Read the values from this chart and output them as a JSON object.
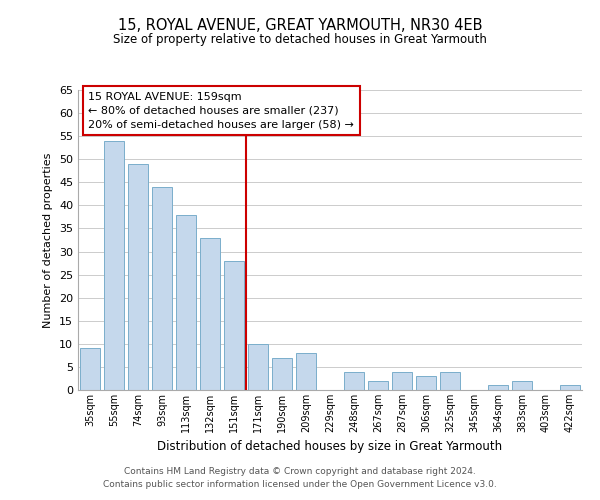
{
  "title": "15, ROYAL AVENUE, GREAT YARMOUTH, NR30 4EB",
  "subtitle": "Size of property relative to detached houses in Great Yarmouth",
  "xlabel": "Distribution of detached houses by size in Great Yarmouth",
  "ylabel": "Number of detached properties",
  "bar_labels": [
    "35sqm",
    "55sqm",
    "74sqm",
    "93sqm",
    "113sqm",
    "132sqm",
    "151sqm",
    "171sqm",
    "190sqm",
    "209sqm",
    "229sqm",
    "248sqm",
    "267sqm",
    "287sqm",
    "306sqm",
    "325sqm",
    "345sqm",
    "364sqm",
    "383sqm",
    "403sqm",
    "422sqm"
  ],
  "bar_values": [
    9,
    54,
    49,
    44,
    38,
    33,
    28,
    10,
    7,
    8,
    0,
    4,
    2,
    4,
    3,
    4,
    0,
    1,
    2,
    0,
    1
  ],
  "bar_color": "#c5d8ec",
  "bar_edge_color": "#7aaecb",
  "vline_x": 6.5,
  "vline_color": "#cc0000",
  "ylim": [
    0,
    65
  ],
  "yticks": [
    0,
    5,
    10,
    15,
    20,
    25,
    30,
    35,
    40,
    45,
    50,
    55,
    60,
    65
  ],
  "annotation_title": "15 ROYAL AVENUE: 159sqm",
  "annotation_line1": "← 80% of detached houses are smaller (237)",
  "annotation_line2": "20% of semi-detached houses are larger (58) →",
  "annotation_box_color": "#ffffff",
  "annotation_box_edge": "#cc0000",
  "footer1": "Contains HM Land Registry data © Crown copyright and database right 2024.",
  "footer2": "Contains public sector information licensed under the Open Government Licence v3.0.",
  "bg_color": "#ffffff",
  "grid_color": "#cccccc"
}
